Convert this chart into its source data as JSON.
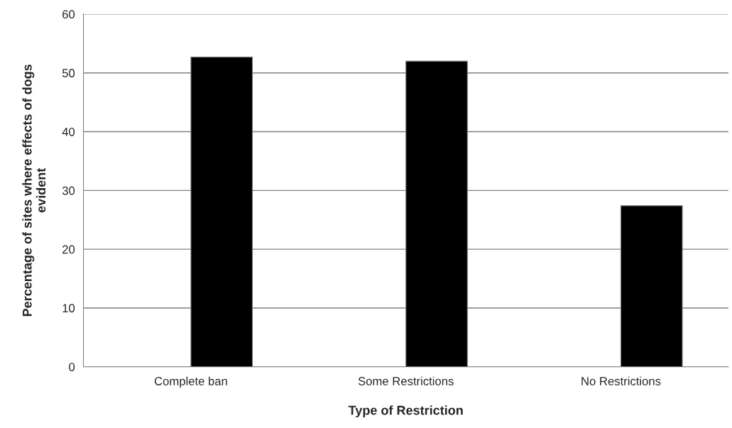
{
  "chart_data": {
    "type": "bar",
    "xlabel": "Type of Restriction",
    "ylabel": "Percentage of sites where effects of dogs evident",
    "categories": [
      "Complete ban",
      "Some Restrictions",
      "No Restrictions"
    ],
    "values": [
      52.7,
      52.0,
      27.4
    ],
    "color": "#000000",
    "ylim": [
      0,
      60
    ],
    "yticks": [
      0,
      10,
      20,
      30,
      40,
      50,
      60
    ],
    "grid": "y",
    "legend": false
  }
}
